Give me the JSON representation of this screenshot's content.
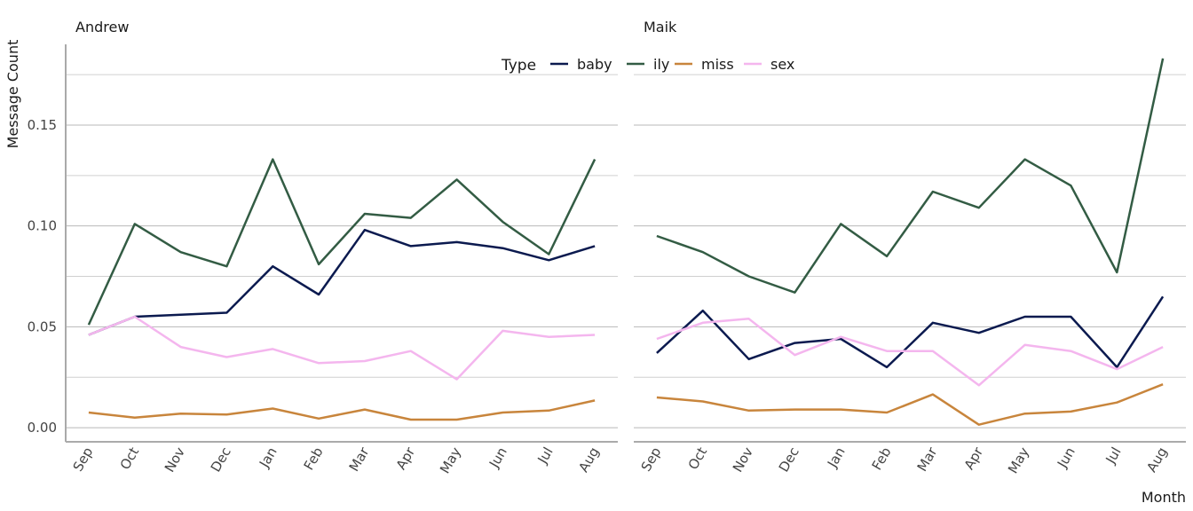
{
  "chart_data": {
    "type": "line",
    "xlabel": "Month",
    "ylabel": "Message Count",
    "ylim": [
      -0.007,
      0.19
    ],
    "yticks": [
      "0.00",
      "0.05",
      "0.10",
      "0.15"
    ],
    "categories": [
      "Sep",
      "Oct",
      "Nov",
      "Dec",
      "Jan",
      "Feb",
      "Mar",
      "Apr",
      "May",
      "Jun",
      "Jul",
      "Aug"
    ],
    "legend": {
      "title": "Type",
      "position": "top",
      "entries": [
        {
          "label": "baby",
          "color": "#0b1a4f"
        },
        {
          "label": "ily",
          "color": "#335c44"
        },
        {
          "label": "miss",
          "color": "#c8853c"
        },
        {
          "label": "sex",
          "color": "#f4b6ee"
        }
      ]
    },
    "grid": "horizontal",
    "panels": [
      {
        "name": "Andrew",
        "series": [
          {
            "name": "baby",
            "color": "#0b1a4f",
            "values": [
              0.046,
              0.055,
              0.056,
              0.057,
              0.08,
              0.066,
              0.098,
              0.09,
              0.092,
              0.089,
              0.083,
              0.09
            ]
          },
          {
            "name": "ily",
            "color": "#335c44",
            "values": [
              0.051,
              0.101,
              0.087,
              0.08,
              0.133,
              0.081,
              0.106,
              0.104,
              0.123,
              0.102,
              0.086,
              0.133
            ]
          },
          {
            "name": "miss",
            "color": "#c8853c",
            "values": [
              0.0075,
              0.005,
              0.007,
              0.0065,
              0.0095,
              0.0045,
              0.009,
              0.004,
              0.004,
              0.0075,
              0.0085,
              0.0135
            ]
          },
          {
            "name": "sex",
            "color": "#f4b6ee",
            "values": [
              0.046,
              0.055,
              0.04,
              0.035,
              0.039,
              0.032,
              0.033,
              0.038,
              0.024,
              0.048,
              0.045,
              0.046
            ]
          }
        ]
      },
      {
        "name": "Maik",
        "series": [
          {
            "name": "baby",
            "color": "#0b1a4f",
            "values": [
              0.037,
              0.058,
              0.034,
              0.042,
              0.044,
              0.03,
              0.052,
              0.047,
              0.055,
              0.055,
              0.03,
              0.065
            ]
          },
          {
            "name": "ily",
            "color": "#335c44",
            "values": [
              0.095,
              0.087,
              0.075,
              0.067,
              0.101,
              0.085,
              0.117,
              0.109,
              0.133,
              0.12,
              0.077,
              0.183
            ]
          },
          {
            "name": "miss",
            "color": "#c8853c",
            "values": [
              0.015,
              0.013,
              0.0085,
              0.009,
              0.009,
              0.0075,
              0.0165,
              0.0015,
              0.007,
              0.008,
              0.0125,
              0.0215
            ]
          },
          {
            "name": "sex",
            "color": "#f4b6ee",
            "values": [
              0.044,
              0.052,
              0.054,
              0.036,
              0.045,
              0.038,
              0.038,
              0.021,
              0.041,
              0.038,
              0.029,
              0.04
            ]
          }
        ]
      }
    ]
  }
}
